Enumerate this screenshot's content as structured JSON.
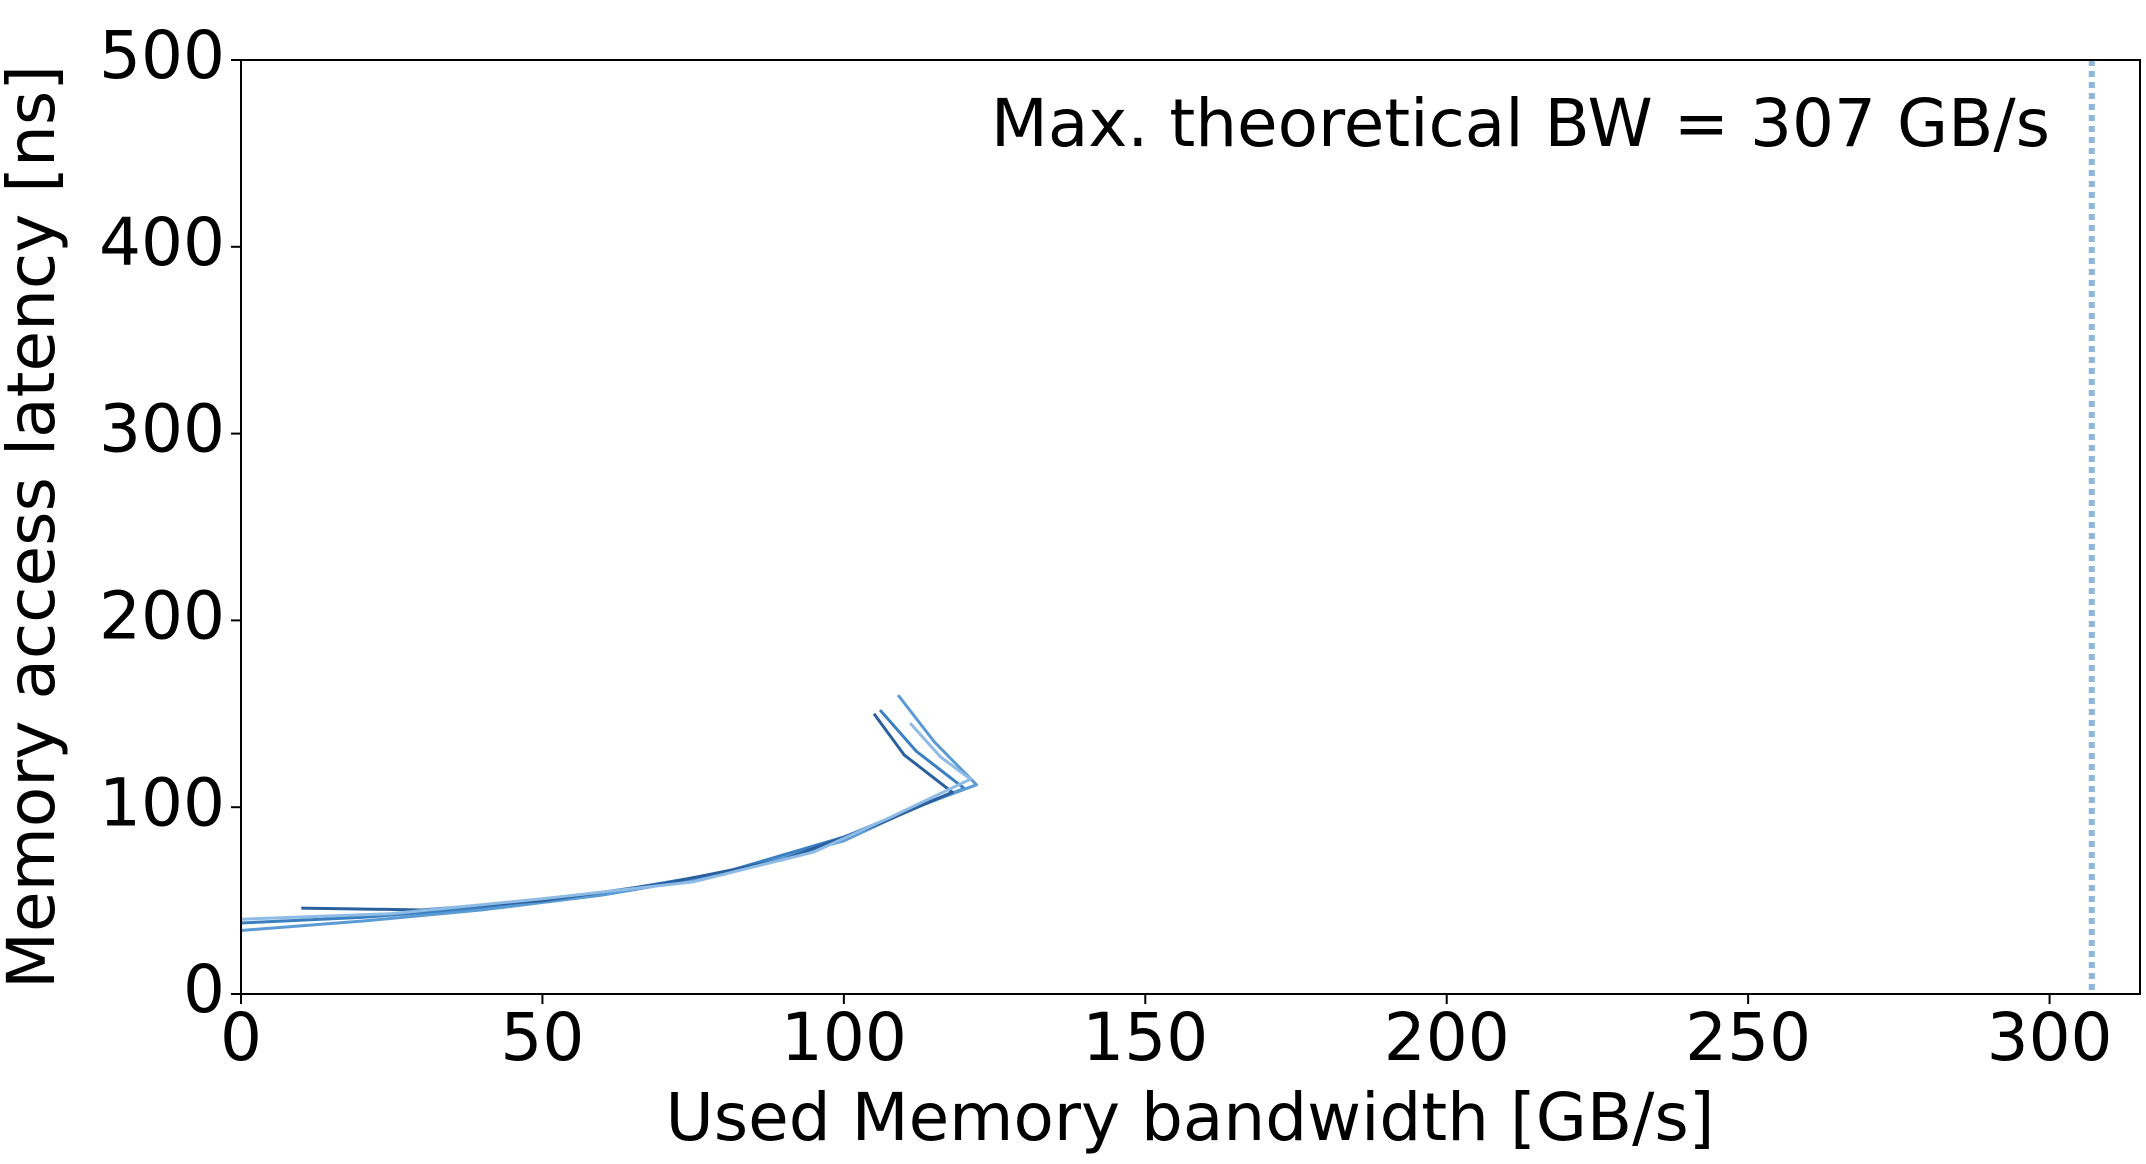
{
  "chart_data": {
    "type": "line",
    "xlabel": "Used Memory bandwidth [GB/s]",
    "ylabel": "Memory access latency [ns]",
    "annotation": "Max. theoretical BW = 307 GB/s",
    "vline": 307,
    "vline_color": "#8bb8dc",
    "xlim": [
      0,
      315
    ],
    "ylim": [
      0,
      500
    ],
    "xticks": [
      0,
      50,
      100,
      150,
      200,
      250,
      300
    ],
    "yticks": [
      0,
      100,
      200,
      300,
      400,
      500
    ],
    "series": [
      {
        "color": "#3a7fc1",
        "x": [
          0,
          20,
          40,
          60,
          80,
          100,
          115,
          120,
          112,
          106
        ],
        "values": [
          38,
          41,
          46,
          54,
          65,
          84,
          104,
          110,
          130,
          152
        ]
      },
      {
        "color": "#5b9bd5",
        "x": [
          0,
          20,
          40,
          60,
          80,
          100,
          112,
          122,
          115,
          109
        ],
        "values": [
          34,
          39,
          45,
          53,
          64,
          82,
          100,
          112,
          135,
          160
        ]
      },
      {
        "color": "#2a5f9e",
        "x": [
          10,
          30,
          50,
          70,
          90,
          105,
          118,
          110,
          105
        ],
        "values": [
          46,
          45,
          50,
          59,
          72,
          90,
          108,
          128,
          150
        ]
      },
      {
        "color": "#8fbce6",
        "x": [
          0,
          25,
          50,
          75,
          95,
          108,
          121,
          116,
          111
        ],
        "values": [
          40,
          43,
          51,
          60,
          76,
          95,
          115,
          127,
          145
        ]
      }
    ]
  }
}
